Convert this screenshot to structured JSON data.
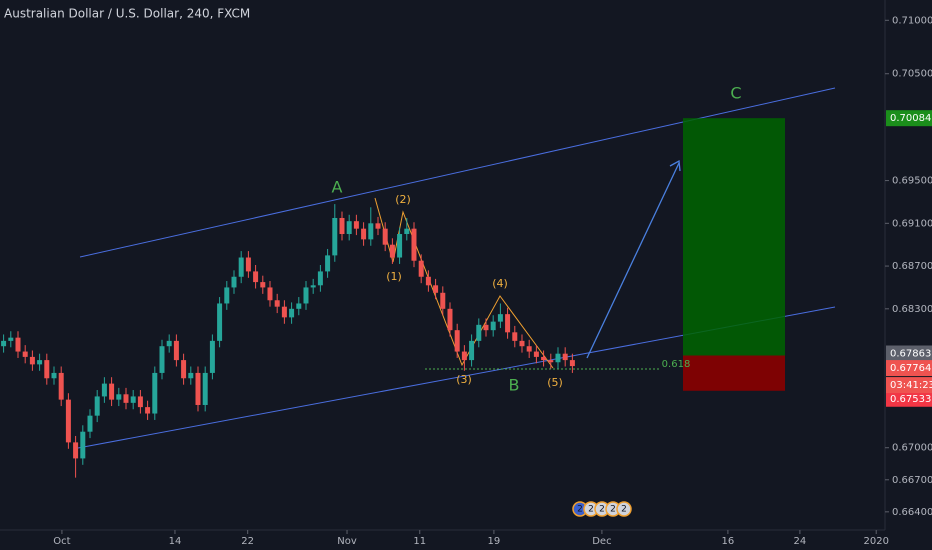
{
  "chart_data": {
    "type": "candlestick",
    "title": "Australian Dollar / U.S. Dollar, 240, FXCM",
    "up_color": "#26a69a",
    "down_color": "#ef5350",
    "open": [
      0.6795,
      0.68,
      0.6803,
      0.679,
      0.6785,
      0.6778,
      0.6782,
      0.6765,
      0.677,
      0.6745,
      0.6705,
      0.669,
      0.6715,
      0.673,
      0.6748,
      0.676,
      0.6745,
      0.675,
      0.6742,
      0.6748,
      0.6738,
      0.6732,
      0.677,
      0.6795,
      0.68,
      0.6782,
      0.6765,
      0.677,
      0.674,
      0.677,
      0.68,
      0.6835,
      0.685,
      0.686,
      0.6878,
      0.6865,
      0.6855,
      0.685,
      0.6838,
      0.6832,
      0.6822,
      0.683,
      0.6835,
      0.685,
      0.6852,
      0.6865,
      0.688,
      0.6915,
      0.69,
      0.6912,
      0.6905,
      0.6895,
      0.691,
      0.6905,
      0.689,
      0.6878,
      0.69,
      0.6905,
      0.6875,
      0.686,
      0.6852,
      0.6845,
      0.683,
      0.681,
      0.679,
      0.6782,
      0.68,
      0.6815,
      0.681,
      0.6818,
      0.6825,
      0.6808,
      0.68,
      0.6795,
      0.679,
      0.6785,
      0.6782,
      0.678,
      0.6788,
      0.6782
    ],
    "high": [
      0.6806,
      0.6809,
      0.6809,
      0.6796,
      0.6791,
      0.6788,
      0.6788,
      0.6776,
      0.6776,
      0.6751,
      0.6711,
      0.6721,
      0.6736,
      0.6754,
      0.6766,
      0.6766,
      0.6756,
      0.6756,
      0.6754,
      0.6754,
      0.6744,
      0.6776,
      0.6801,
      0.6806,
      0.6806,
      0.6788,
      0.6776,
      0.6776,
      0.6776,
      0.6806,
      0.6841,
      0.6856,
      0.6866,
      0.6884,
      0.6884,
      0.6871,
      0.6861,
      0.6856,
      0.6844,
      0.6838,
      0.6836,
      0.6841,
      0.6856,
      0.6858,
      0.6871,
      0.6886,
      0.6928,
      0.6921,
      0.6918,
      0.6918,
      0.6911,
      0.6925,
      0.6916,
      0.6911,
      0.6896,
      0.6906,
      0.6915,
      0.6911,
      0.6881,
      0.6866,
      0.6858,
      0.6851,
      0.6836,
      0.6816,
      0.6796,
      0.6806,
      0.6821,
      0.6821,
      0.6824,
      0.6835,
      0.6831,
      0.6814,
      0.6806,
      0.6801,
      0.6796,
      0.6791,
      0.6788,
      0.6794,
      0.6794,
      0.6788
    ],
    "low": [
      0.6789,
      0.6794,
      0.6784,
      0.6779,
      0.6772,
      0.6772,
      0.6759,
      0.6759,
      0.6739,
      0.6699,
      0.6672,
      0.6684,
      0.6709,
      0.6724,
      0.6742,
      0.6739,
      0.6739,
      0.6736,
      0.6736,
      0.6732,
      0.6726,
      0.6726,
      0.6764,
      0.6789,
      0.6776,
      0.6759,
      0.6759,
      0.6734,
      0.6734,
      0.6764,
      0.6794,
      0.6829,
      0.6844,
      0.6854,
      0.6859,
      0.6849,
      0.6844,
      0.6832,
      0.6826,
      0.6816,
      0.6816,
      0.6824,
      0.6829,
      0.6844,
      0.6846,
      0.6859,
      0.6874,
      0.6894,
      0.6894,
      0.6899,
      0.6889,
      0.6889,
      0.6899,
      0.6884,
      0.6872,
      0.6872,
      0.6894,
      0.6869,
      0.6854,
      0.6846,
      0.6839,
      0.6824,
      0.6804,
      0.6784,
      0.6772,
      0.6776,
      0.6794,
      0.6804,
      0.6804,
      0.6812,
      0.6802,
      0.6794,
      0.6789,
      0.6784,
      0.6779,
      0.6776,
      0.6774,
      0.6774,
      0.6776,
      0.677
    ],
    "close": [
      0.68,
      0.6803,
      0.679,
      0.6785,
      0.6778,
      0.6782,
      0.6765,
      0.677,
      0.6745,
      0.6705,
      0.669,
      0.6715,
      0.673,
      0.6748,
      0.676,
      0.6745,
      0.675,
      0.6742,
      0.6748,
      0.6738,
      0.6732,
      0.677,
      0.6795,
      0.68,
      0.6782,
      0.6765,
      0.677,
      0.674,
      0.677,
      0.68,
      0.6835,
      0.685,
      0.686,
      0.6878,
      0.6865,
      0.6855,
      0.685,
      0.6838,
      0.6832,
      0.6822,
      0.683,
      0.6835,
      0.685,
      0.6852,
      0.6865,
      0.688,
      0.6915,
      0.69,
      0.6912,
      0.6905,
      0.6895,
      0.691,
      0.6905,
      0.689,
      0.6878,
      0.69,
      0.6905,
      0.6875,
      0.686,
      0.6852,
      0.6845,
      0.683,
      0.681,
      0.679,
      0.6782,
      0.68,
      0.6815,
      0.681,
      0.6818,
      0.6825,
      0.6808,
      0.68,
      0.6795,
      0.679,
      0.6785,
      0.6782,
      0.678,
      0.6788,
      0.6782,
      0.67764
    ],
    "xlim": [
      -0.5,
      122.42
    ],
    "xticks": [
      {
        "value": 8.1,
        "label": "Oct"
      },
      {
        "value": 23.8,
        "label": "14"
      },
      {
        "value": 33.9,
        "label": "22"
      },
      {
        "value": 47.7,
        "label": "Nov"
      },
      {
        "value": 57.8,
        "label": "11"
      },
      {
        "value": 68.1,
        "label": "19"
      },
      {
        "value": 83.1,
        "label": "Dec"
      },
      {
        "value": 100.6,
        "label": "16"
      },
      {
        "value": 110.6,
        "label": "24"
      },
      {
        "value": 121.2,
        "label": "2020"
      }
    ],
    "ylim": [
      0.6623,
      0.7119
    ],
    "yticks": [
      {
        "value": 0.71,
        "label": "0.71000"
      },
      {
        "value": 0.705,
        "label": "0.70500"
      },
      {
        "value": 0.695,
        "label": "0.69500"
      },
      {
        "value": 0.691,
        "label": "0.69100"
      },
      {
        "value": 0.687,
        "label": "0.68700"
      },
      {
        "value": 0.683,
        "label": "0.68300"
      },
      {
        "value": 0.67,
        "label": "0.67000"
      },
      {
        "value": 0.667,
        "label": "0.66700"
      },
      {
        "value": 0.664,
        "label": "0.66400"
      }
    ],
    "price_labels": [
      {
        "value": 0.70084,
        "label": "0.70084",
        "color": "#1b8e1b"
      },
      {
        "value": 0.67863,
        "label": "0.67863",
        "color": "#5d606b"
      },
      {
        "value": 0.67764,
        "label": "0.67764",
        "color": "#ef5350"
      },
      {
        "value": 0.67533,
        "label": "0.67533",
        "color": "#f23645"
      }
    ],
    "countdown": "03:41:23",
    "annotations": [
      "A",
      "B",
      "C",
      "(1)",
      "(2)",
      "(3)",
      "(4)",
      "(5)",
      "0.618"
    ],
    "badges": [
      "2",
      "2",
      "2",
      "2",
      "2"
    ]
  }
}
